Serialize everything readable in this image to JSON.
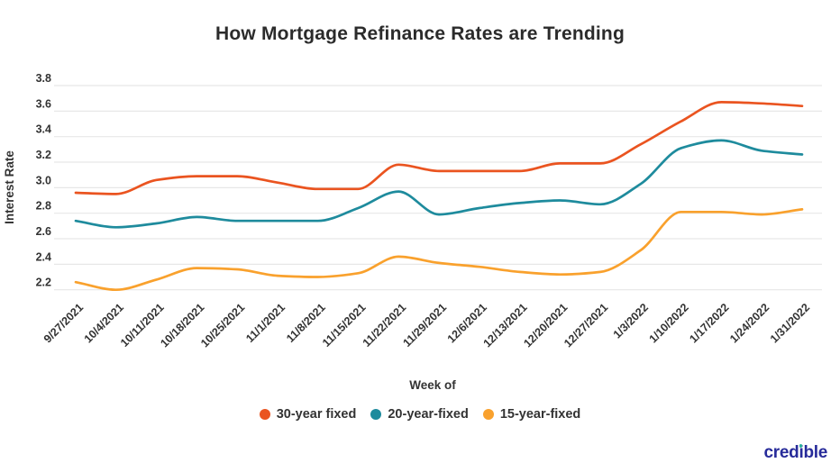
{
  "title": "How Mortgage Refinance Rates are Trending",
  "branding": {
    "logo_text": "credible"
  },
  "colors": {
    "grid": "#e7e7e7",
    "axis_text": "#333333",
    "title_text": "#2b2b2b",
    "logo_navy": "#272b9a",
    "logo_dot_teal": "#2ab29b"
  },
  "chart_data": {
    "type": "line",
    "title": "How Mortgage Refinance Rates are Trending",
    "xlabel": "Week of",
    "ylabel": "Interest Rate",
    "grid": true,
    "legend_position": "bottom",
    "ylim": [
      2.2,
      3.8
    ],
    "yticks": [
      3.8,
      3.6,
      3.4,
      3.2,
      3.0,
      2.8,
      2.6,
      2.4,
      2.2
    ],
    "x": [
      "9/27/2021",
      "10/4/2021",
      "10/11/2021",
      "10/18/2021",
      "10/25/2021",
      "11/1/2021",
      "11/8/2021",
      "11/15/2021",
      "11/22/2021",
      "11/29/2021",
      "12/6/2021",
      "12/13/2021",
      "12/20/2021",
      "12/27/2021",
      "1/3/2022",
      "1/10/2022",
      "1/17/2022",
      "1/24/2022",
      "1/31/2022"
    ],
    "series": [
      {
        "name": "30-year fixed",
        "color": "#ea5420",
        "values": [
          2.96,
          2.95,
          3.06,
          3.09,
          3.09,
          3.04,
          2.99,
          2.99,
          3.18,
          3.13,
          3.13,
          3.13,
          3.19,
          3.19,
          3.34,
          3.52,
          3.67,
          3.66,
          3.64
        ]
      },
      {
        "name": "20-year-fixed",
        "color": "#1e8b9d",
        "values": [
          2.74,
          2.69,
          2.72,
          2.77,
          2.74,
          2.74,
          2.74,
          2.84,
          2.97,
          2.79,
          2.84,
          2.88,
          2.9,
          2.87,
          3.03,
          3.31,
          3.37,
          3.29,
          3.26
        ]
      },
      {
        "name": "15-year-fixed",
        "color": "#f9a12d",
        "values": [
          2.26,
          2.2,
          2.28,
          2.37,
          2.36,
          2.31,
          2.3,
          2.33,
          2.46,
          2.41,
          2.38,
          2.34,
          2.32,
          2.34,
          2.51,
          2.81,
          2.81,
          2.79,
          2.83
        ]
      }
    ]
  }
}
